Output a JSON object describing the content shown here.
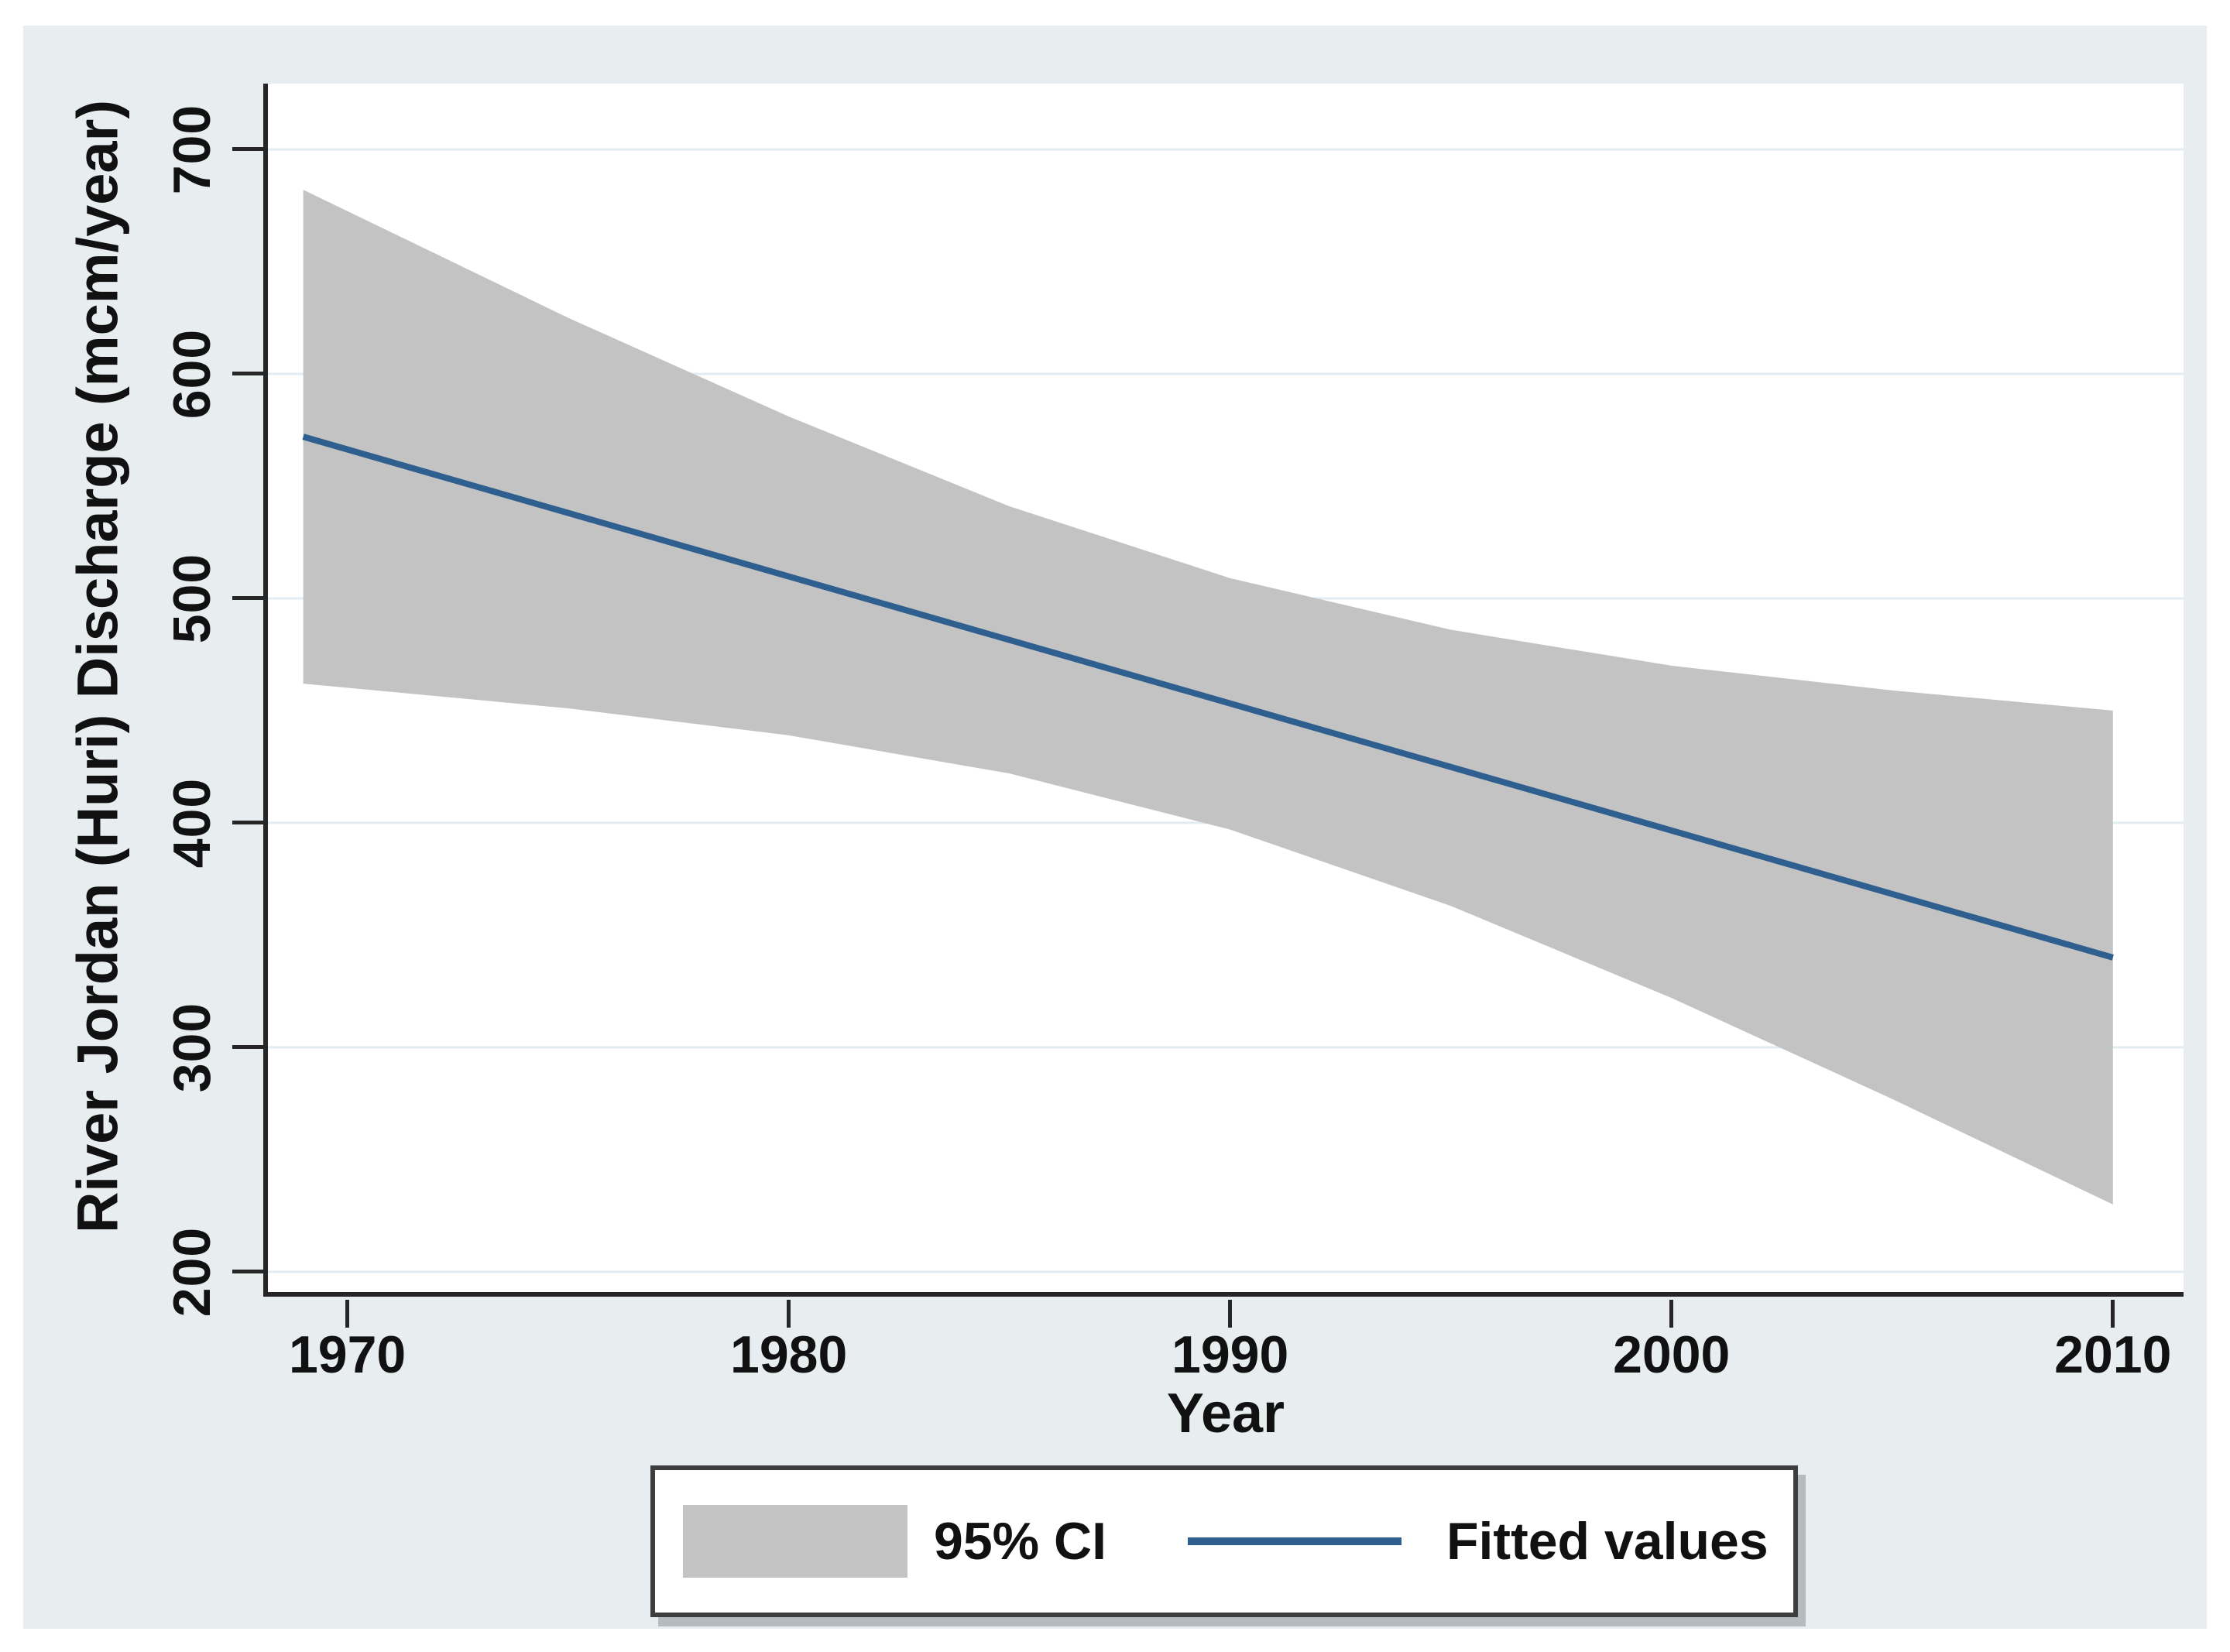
{
  "figure": {
    "background": "#ffffff",
    "panel_color": "#E8EEF0",
    "plot_bg": "#ffffff",
    "grid_color": "#E2EDF3",
    "axis_color": "#262626",
    "text_color": "#111111",
    "band_color": "#C3C3C3",
    "line_color": "#2F5F8F"
  },
  "chart_data": {
    "type": "line",
    "title": "",
    "xlabel": "Year",
    "ylabel": "River Jordan (Huri) Discharge (mcm/year)",
    "x_ticks": [
      1970,
      1980,
      1990,
      2000,
      2010
    ],
    "y_ticks": [
      200,
      300,
      400,
      500,
      600,
      700
    ],
    "xlim": [
      1968.2,
      2011.6
    ],
    "ylim": [
      191,
      729.3
    ],
    "grid": "horizontal",
    "legend_position": "bottom",
    "series": [
      {
        "name": "95% CI",
        "kind": "band",
        "x": [
          1969,
          1975,
          1980,
          1985,
          1990,
          1995,
          2000,
          2005,
          2010
        ],
        "upper": [
          682,
          625,
          581,
          541,
          509,
          486,
          470,
          459,
          450
        ],
        "lower": [
          462,
          451,
          439,
          422,
          397,
          363,
          322,
          277,
          230
        ]
      },
      {
        "name": "Fitted values",
        "kind": "line",
        "x": [
          1969,
          2010
        ],
        "y": [
          572,
          340
        ]
      }
    ],
    "legend": {
      "entries": [
        {
          "label": "95% CI",
          "swatch": "band"
        },
        {
          "label": "Fitted values",
          "swatch": "line"
        }
      ]
    }
  }
}
